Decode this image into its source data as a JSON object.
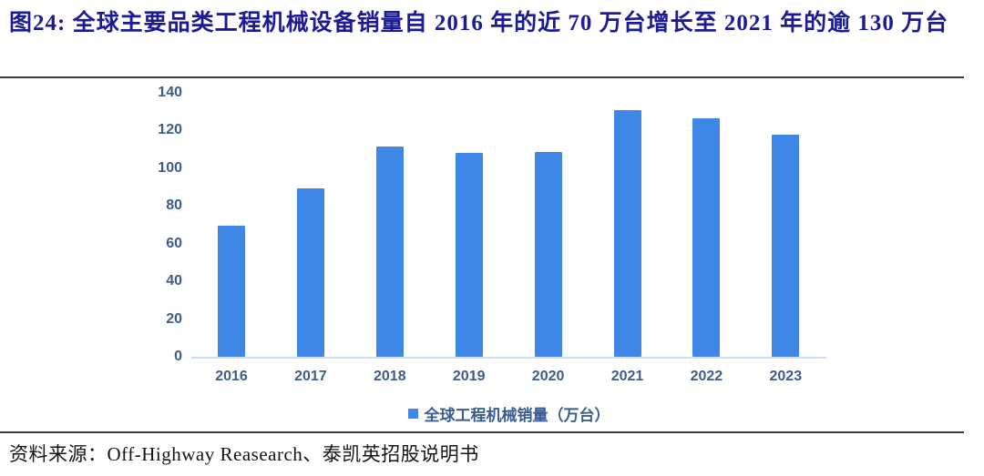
{
  "figure": {
    "title": "图24:  全球主要品类工程机械设备销量自 2016 年的近 70 万台增长至 2021 年的逾 130 万台"
  },
  "chart_data": {
    "type": "bar",
    "title": "",
    "xlabel": "",
    "ylabel": "",
    "categories": [
      "2016",
      "2017",
      "2018",
      "2019",
      "2020",
      "2021",
      "2022",
      "2023"
    ],
    "values": [
      69.5,
      89,
      111.5,
      108,
      108.5,
      130.5,
      126.5,
      117.5
    ],
    "yticks": [
      0,
      20,
      40,
      60,
      80,
      100,
      120,
      140
    ],
    "ylim": [
      0,
      140
    ],
    "grid": false,
    "legend": "全球工程机械销量（万台）",
    "legend_position": "bottom",
    "bar_color": "#3F87E6",
    "axis_label_color": "#3B5C8F",
    "axis_line_color": "#CFE0F2"
  },
  "source": {
    "text": "资料来源：Off-Highway Reasearch、泰凯英招股说明书"
  },
  "colors": {
    "title": "#1B1B96",
    "divider": "#3B3B3B",
    "background": "#FFFFFF"
  }
}
